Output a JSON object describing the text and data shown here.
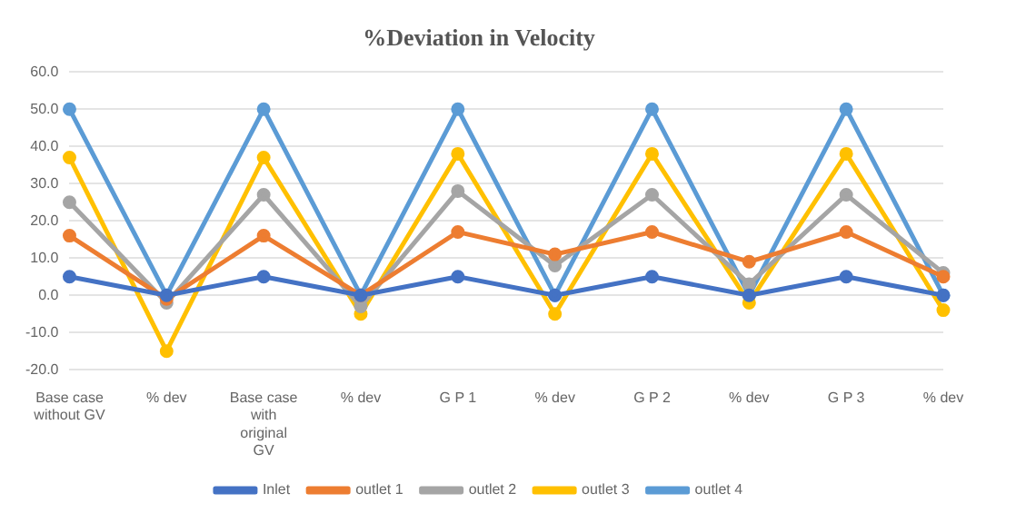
{
  "chart_data": {
    "type": "line",
    "title": "%Deviation in Velocity",
    "categories": [
      "Base case without GV",
      "% dev",
      "Base case with original GV",
      "% dev",
      "G P 1",
      "% dev",
      "G P 2",
      "% dev",
      "G P 3",
      "% dev"
    ],
    "series": [
      {
        "name": "Inlet",
        "color": "#4472c4",
        "values": [
          5,
          0,
          5,
          0,
          5,
          0,
          5,
          0,
          5,
          0
        ]
      },
      {
        "name": "outlet 1",
        "color": "#ed7d31",
        "values": [
          16,
          -1,
          16,
          0,
          17,
          11,
          17,
          9,
          17,
          5
        ]
      },
      {
        "name": "outlet 2",
        "color": "#a5a5a5",
        "values": [
          25,
          -2,
          27,
          -3,
          28,
          8,
          27,
          3,
          27,
          6
        ]
      },
      {
        "name": "outlet 3",
        "color": "#ffc000",
        "values": [
          37,
          -15,
          37,
          -5,
          38,
          -5,
          38,
          -2,
          38,
          -4
        ]
      },
      {
        "name": "outlet 4",
        "color": "#5b9bd5",
        "values": [
          50,
          0,
          50,
          0,
          50,
          0,
          50,
          0,
          50,
          0
        ]
      }
    ],
    "ylim": [
      -20,
      60
    ],
    "yticks": [
      {
        "value": -20,
        "label": "-20.0"
      },
      {
        "value": -10,
        "label": "-10.0"
      },
      {
        "value": 0,
        "label": "0.0"
      },
      {
        "value": 10,
        "label": "10.0"
      },
      {
        "value": 20,
        "label": "20.0"
      },
      {
        "value": 30,
        "label": "30.0"
      },
      {
        "value": 40,
        "label": "40.0"
      },
      {
        "value": 50,
        "label": "50.0"
      },
      {
        "value": 60,
        "label": "60.0"
      }
    ],
    "grid": "y",
    "legend": "bottom",
    "marker": "circle",
    "line_style": "solid"
  }
}
